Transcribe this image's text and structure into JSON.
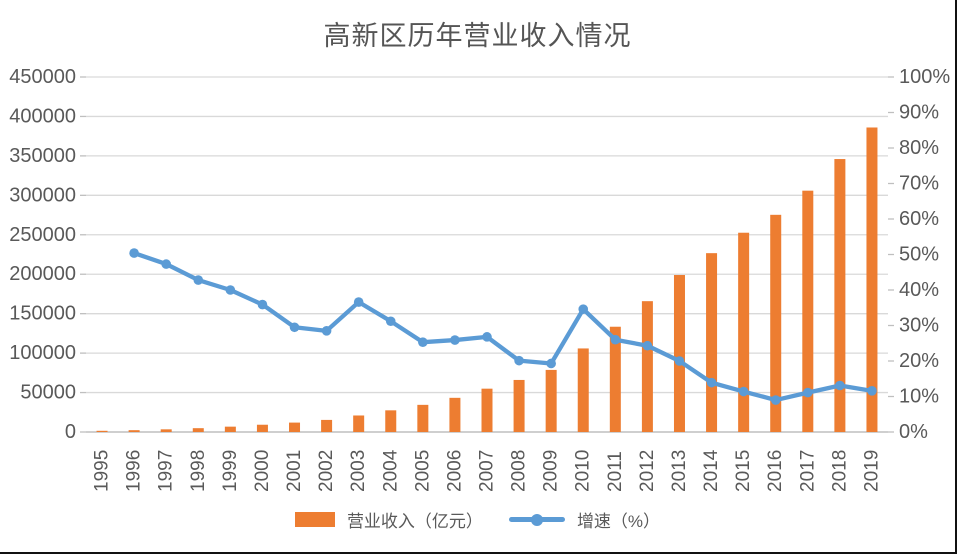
{
  "title": "高新区历年营业收入情况",
  "chart_data": {
    "type": "bar+line",
    "title": "高新区历年营业收入情况",
    "categories": [
      "1995",
      "1996",
      "1997",
      "1998",
      "1999",
      "2000",
      "2001",
      "2002",
      "2003",
      "2004",
      "2005",
      "2006",
      "2007",
      "2008",
      "2009",
      "2010",
      "2011",
      "2012",
      "2013",
      "2014",
      "2015",
      "2016",
      "2017",
      "2018",
      "2019"
    ],
    "series": [
      {
        "name": "营业收入（亿元）",
        "type": "bar",
        "axis": "left",
        "color": "#ED7D31",
        "values": [
          1529,
          2300,
          3388,
          4839,
          6775,
          9209,
          11928,
          15326,
          20939,
          27466,
          34416,
          43320,
          54926,
          65986,
          78707,
          105917,
          133434,
          165842,
          199000,
          226700,
          252600,
          275300,
          305900,
          346000,
          386000
        ]
      },
      {
        "name": "增速（%）",
        "type": "line",
        "axis": "right",
        "color": "#5B9BD5",
        "values": [
          null,
          50.4,
          47.3,
          42.8,
          40.0,
          35.9,
          29.5,
          28.5,
          36.6,
          31.2,
          25.3,
          25.9,
          26.8,
          20.1,
          19.3,
          34.6,
          26.0,
          24.3,
          20.0,
          13.9,
          11.4,
          9.0,
          11.1,
          13.1,
          11.6
        ]
      }
    ],
    "left_axis": {
      "min": 0,
      "max": 450000,
      "step": 50000,
      "tick_labels": [
        "0",
        "50000",
        "100000",
        "150000",
        "200000",
        "250000",
        "300000",
        "350000",
        "400000",
        "450000"
      ]
    },
    "right_axis": {
      "min": 0,
      "max": 100,
      "step": 10,
      "tick_labels": [
        "0%",
        "10%",
        "20%",
        "30%",
        "40%",
        "50%",
        "60%",
        "70%",
        "80%",
        "90%",
        "100%"
      ]
    },
    "legend": [
      "营业收入（亿元）",
      "增速（%）"
    ],
    "legend_position": "bottom",
    "grid": true,
    "x_label_rotation": -90,
    "colors": {
      "bar": "#ED7D31",
      "line": "#5B9BD5",
      "grid": "#D9D9D9",
      "axis_line": "#BFBFBF",
      "text": "#595959"
    }
  }
}
